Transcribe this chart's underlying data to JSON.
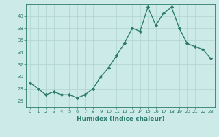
{
  "x": [
    0,
    1,
    2,
    3,
    4,
    5,
    6,
    7,
    8,
    9,
    10,
    11,
    12,
    13,
    14,
    15,
    16,
    17,
    18,
    19,
    20,
    21,
    22,
    23
  ],
  "y": [
    29,
    28,
    27,
    27.5,
    27,
    27,
    26.5,
    27,
    28,
    30,
    31.5,
    33.5,
    35.5,
    38,
    37.5,
    41.5,
    38.5,
    40.5,
    41.5,
    38,
    35.5,
    35,
    34.5,
    33
  ],
  "line_color": "#2d7a6e",
  "marker": "D",
  "marker_size": 2.2,
  "bg_color": "#cceae8",
  "grid_color": "#aed4d0",
  "tick_color": "#2d7a6e",
  "xlabel": "Humidex (Indice chaleur)",
  "ylim": [
    25,
    42
  ],
  "yticks": [
    26,
    28,
    30,
    32,
    34,
    36,
    38,
    40
  ],
  "line_width": 1.0,
  "xlabel_fontsize": 6.5,
  "tick_fontsize": 5.0
}
